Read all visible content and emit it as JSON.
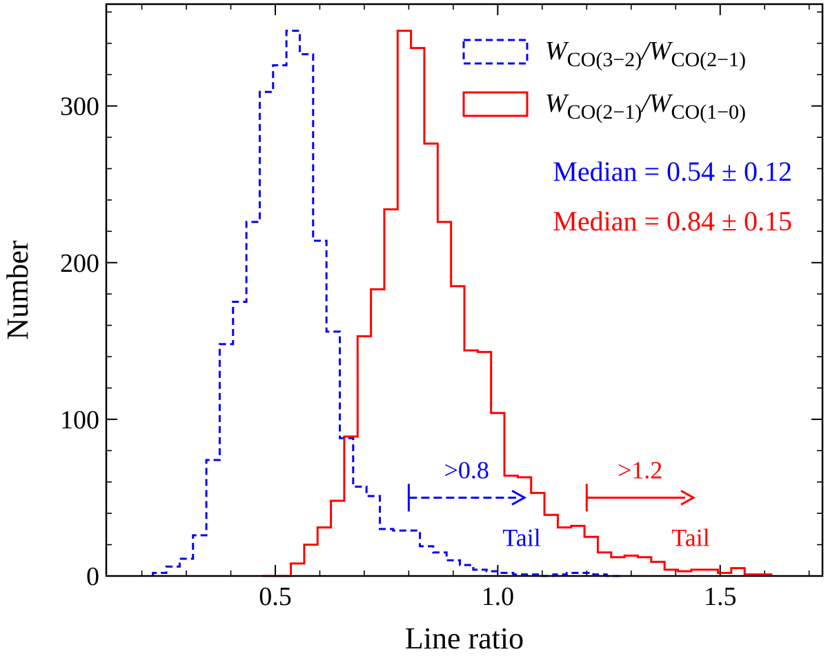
{
  "chart_data": {
    "type": "histogram",
    "xlabel": "Line ratio",
    "ylabel": "Number",
    "xlim": [
      0.12,
      1.73
    ],
    "ylim": [
      0,
      365
    ],
    "xticks": [
      0.5,
      1.0,
      1.5
    ],
    "xtick_labels": [
      "0.5",
      "1.0",
      "1.5"
    ],
    "yticks": [
      0,
      100,
      200,
      300
    ],
    "ytick_labels": [
      "0",
      "100",
      "200",
      "300"
    ],
    "grid": false,
    "legend_position": "top-right",
    "series": [
      {
        "name": "W_CO(3-2)/W_CO(2-1)",
        "label_main": "W",
        "label_sub1": "CO(3−2)",
        "label_mid": "/W",
        "label_sub2": "CO(2−1)",
        "color": "#0000ff",
        "linestyle": "dashed",
        "bins": [
          [
            0.225,
            0.255,
            2
          ],
          [
            0.255,
            0.285,
            6
          ],
          [
            0.285,
            0.315,
            11
          ],
          [
            0.315,
            0.345,
            26
          ],
          [
            0.345,
            0.375,
            74
          ],
          [
            0.375,
            0.405,
            148
          ],
          [
            0.405,
            0.435,
            175
          ],
          [
            0.435,
            0.465,
            226
          ],
          [
            0.465,
            0.495,
            309
          ],
          [
            0.495,
            0.525,
            326
          ],
          [
            0.525,
            0.555,
            348
          ],
          [
            0.555,
            0.585,
            333
          ],
          [
            0.585,
            0.615,
            214
          ],
          [
            0.615,
            0.645,
            156
          ],
          [
            0.645,
            0.675,
            88
          ],
          [
            0.675,
            0.705,
            57
          ],
          [
            0.705,
            0.735,
            51
          ],
          [
            0.735,
            0.765,
            30
          ],
          [
            0.765,
            0.795,
            29
          ],
          [
            0.795,
            0.825,
            29
          ],
          [
            0.825,
            0.855,
            19
          ],
          [
            0.855,
            0.885,
            15
          ],
          [
            0.885,
            0.915,
            10
          ],
          [
            0.915,
            0.945,
            7
          ],
          [
            0.945,
            0.975,
            4
          ],
          [
            0.975,
            1.005,
            3
          ],
          [
            1.005,
            1.035,
            2
          ],
          [
            1.035,
            1.065,
            1
          ],
          [
            1.065,
            1.095,
            1
          ],
          [
            1.095,
            1.125,
            0
          ],
          [
            1.125,
            1.155,
            1
          ],
          [
            1.155,
            1.185,
            2
          ],
          [
            1.185,
            1.215,
            2
          ],
          [
            1.215,
            1.245,
            1
          ],
          [
            1.245,
            1.275,
            0
          ]
        ]
      },
      {
        "name": "W_CO(2-1)/W_CO(1-0)",
        "label_main": "W",
        "label_sub1": "CO(2−1)",
        "label_mid": "/W",
        "label_sub2": "CO(1−0)",
        "color": "#ff0000",
        "linestyle": "solid",
        "bins": [
          [
            0.47,
            0.535,
            0
          ],
          [
            0.535,
            0.565,
            8
          ],
          [
            0.565,
            0.595,
            20
          ],
          [
            0.595,
            0.625,
            31
          ],
          [
            0.625,
            0.655,
            48
          ],
          [
            0.655,
            0.685,
            89
          ],
          [
            0.685,
            0.715,
            153
          ],
          [
            0.715,
            0.745,
            183
          ],
          [
            0.745,
            0.775,
            234
          ],
          [
            0.775,
            0.805,
            348
          ],
          [
            0.805,
            0.835,
            337
          ],
          [
            0.835,
            0.865,
            276
          ],
          [
            0.865,
            0.895,
            226
          ],
          [
            0.895,
            0.925,
            185
          ],
          [
            0.925,
            0.955,
            144
          ],
          [
            0.955,
            0.985,
            143
          ],
          [
            0.985,
            1.015,
            104
          ],
          [
            1.015,
            1.045,
            64
          ],
          [
            1.045,
            1.075,
            63
          ],
          [
            1.075,
            1.105,
            53
          ],
          [
            1.105,
            1.135,
            39
          ],
          [
            1.135,
            1.165,
            31
          ],
          [
            1.165,
            1.195,
            32
          ],
          [
            1.195,
            1.225,
            25
          ],
          [
            1.225,
            1.255,
            15
          ],
          [
            1.255,
            1.285,
            12
          ],
          [
            1.285,
            1.315,
            13
          ],
          [
            1.315,
            1.345,
            12
          ],
          [
            1.345,
            1.375,
            9
          ],
          [
            1.375,
            1.405,
            4
          ],
          [
            1.405,
            1.435,
            3
          ],
          [
            1.435,
            1.465,
            4
          ],
          [
            1.465,
            1.495,
            4
          ],
          [
            1.495,
            1.525,
            2
          ],
          [
            1.525,
            1.555,
            5
          ],
          [
            1.555,
            1.585,
            1
          ],
          [
            1.585,
            1.615,
            1
          ]
        ]
      }
    ],
    "medians": [
      {
        "text": "Median = 0.54 ± 0.12",
        "color": "#0000ff"
      },
      {
        "text": "Median = 0.84 ± 0.15",
        "color": "#ff0000"
      }
    ],
    "annotations": [
      {
        "label": ">0.8",
        "note": "Tail",
        "from_x": 0.8,
        "to_x": 1.06,
        "y": 50,
        "color": "#0000ff",
        "linestyle": "dashed"
      },
      {
        "label": ">1.2",
        "note": "Tail",
        "from_x": 1.2,
        "to_x": 1.44,
        "y": 50,
        "color": "#ff0000",
        "linestyle": "solid"
      }
    ]
  }
}
